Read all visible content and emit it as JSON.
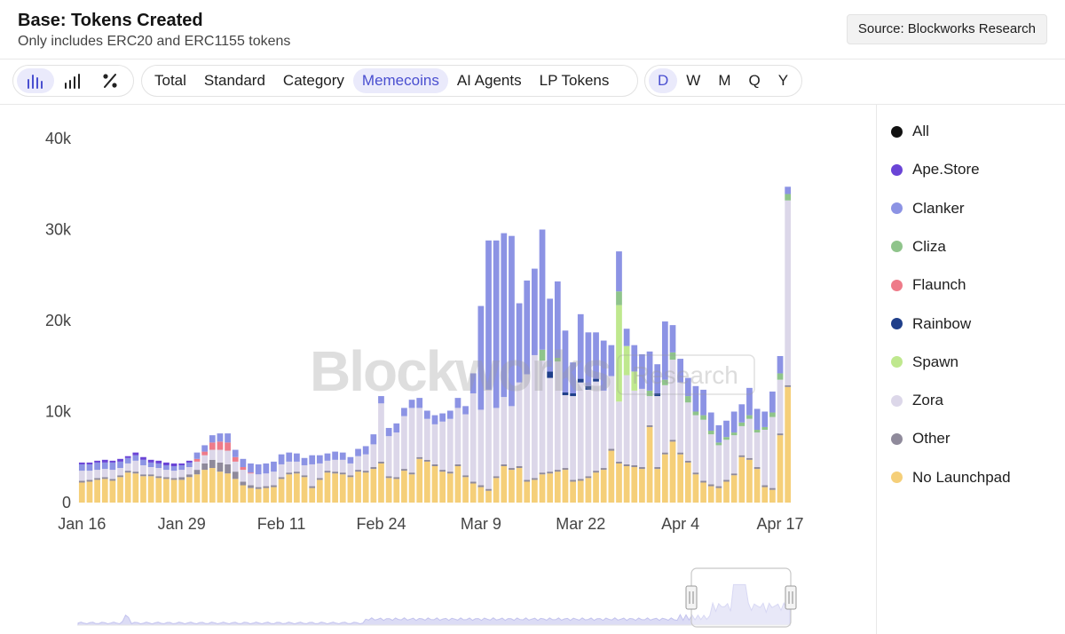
{
  "header": {
    "title": "Base: Tokens Created",
    "subtitle": "Only includes ERC20 and ERC1155 tokens",
    "source": "Source: Blockworks Research"
  },
  "toolbar": {
    "chart_modes": [
      {
        "icon": "bar-chart-icon",
        "active": true
      },
      {
        "icon": "stacked-bar-icon",
        "active": false
      },
      {
        "icon": "percent-icon",
        "active": false
      }
    ],
    "categories": [
      {
        "label": "Total",
        "active": false
      },
      {
        "label": "Standard",
        "active": false
      },
      {
        "label": "Category",
        "active": false
      },
      {
        "label": "Memecoins",
        "active": true
      },
      {
        "label": "AI Agents",
        "active": false
      },
      {
        "label": "LP Tokens",
        "active": false
      }
    ],
    "periods": [
      {
        "label": "D",
        "active": true
      },
      {
        "label": "W",
        "active": false
      },
      {
        "label": "M",
        "active": false
      },
      {
        "label": "Q",
        "active": false
      },
      {
        "label": "Y",
        "active": false
      }
    ]
  },
  "watermark": {
    "brand": "Blockworks",
    "sub": "Research"
  },
  "legend": [
    {
      "label": "All",
      "color": "#111111"
    },
    {
      "label": "Ape.Store",
      "color": "#6a44d6"
    },
    {
      "label": "Clanker",
      "color": "#8c93e4"
    },
    {
      "label": "Cliza",
      "color": "#8fc48b"
    },
    {
      "label": "Flaunch",
      "color": "#ee7b89"
    },
    {
      "label": "Rainbow",
      "color": "#1f3f8a"
    },
    {
      "label": "Spawn",
      "color": "#bfe88e"
    },
    {
      "label": "Zora",
      "color": "#dcd7e9"
    },
    {
      "label": "Other",
      "color": "#8f8a9b"
    },
    {
      "label": "No Launchpad",
      "color": "#f5cf79"
    }
  ],
  "chart_data": {
    "type": "bar",
    "stacked": true,
    "title": "Base: Tokens Created",
    "subtitle": "Only includes ERC20 and ERC1155 tokens",
    "xlabel": "",
    "ylabel": "",
    "ylim": [
      0,
      40000
    ],
    "y_ticks": [
      "0",
      "10k",
      "20k",
      "30k",
      "40k"
    ],
    "x_tick_labels": [
      "Jan 16",
      "Jan 29",
      "Feb 11",
      "Feb 24",
      "Mar 9",
      "Mar 22",
      "Apr 4",
      "Apr 17"
    ],
    "x_tick_index": [
      0,
      13,
      26,
      39,
      52,
      65,
      78,
      91
    ],
    "date_range": [
      "Jan 16",
      "Apr 17"
    ],
    "legend_position": "right",
    "series_order": [
      "No Launchpad",
      "Other",
      "Zora",
      "Spawn",
      "Rainbow",
      "Flaunch",
      "Cliza",
      "Clanker",
      "Ape.Store"
    ],
    "colors": {
      "No Launchpad": "#f5cf79",
      "Other": "#8f8a9b",
      "Zora": "#dcd7e9",
      "Spawn": "#bfe88e",
      "Rainbow": "#1f3f8a",
      "Flaunch": "#ee7b89",
      "Cliza": "#8fc48b",
      "Clanker": "#8c93e4",
      "Ape.Store": "#6a44d6"
    },
    "totals": [
      4400,
      4400,
      4600,
      4700,
      4600,
      4800,
      5100,
      5500,
      5000,
      4700,
      4600,
      4400,
      4300,
      4300,
      4600,
      5500,
      6300,
      7400,
      7600,
      7600,
      5800,
      4800,
      4300,
      4200,
      4300,
      4500,
      5300,
      5500,
      5400,
      4900,
      5200,
      5200,
      5400,
      5600,
      5500,
      5000,
      5900,
      6200,
      7500,
      11700,
      8200,
      8700,
      10400,
      11300,
      11500,
      10100,
      9600,
      9800,
      10100,
      11500,
      10600,
      14200,
      21600,
      28800,
      28800,
      29600,
      29300,
      21900,
      24400,
      25700,
      30000,
      22400,
      24300,
      18900,
      15400,
      20700,
      18700,
      18700,
      17800,
      17300,
      27600,
      19100,
      17300,
      16300,
      16600,
      15200,
      19900,
      19500,
      15800,
      13700,
      12800,
      12400,
      9900,
      8500,
      9000,
      10000,
      10800,
      12600,
      10300,
      10000,
      12200,
      16100,
      34700
    ],
    "segments": [
      {
        "nolaunch": 2200,
        "other": 200,
        "zora": 1100,
        "clanker": 700,
        "ape": 200
      },
      {
        "nolaunch": 2300,
        "other": 200,
        "zora": 1000,
        "clanker": 700,
        "ape": 200
      },
      {
        "nolaunch": 2500,
        "other": 200,
        "zora": 900,
        "clanker": 800,
        "ape": 200
      },
      {
        "nolaunch": 2600,
        "other": 200,
        "zora": 900,
        "clanker": 700,
        "ape": 300
      },
      {
        "nolaunch": 2400,
        "other": 200,
        "zora": 1000,
        "clanker": 800,
        "ape": 200
      },
      {
        "nolaunch": 2800,
        "other": 200,
        "zora": 800,
        "clanker": 700,
        "ape": 300
      },
      {
        "nolaunch": 3300,
        "other": 200,
        "zora": 800,
        "clanker": 600,
        "ape": 200
      },
      {
        "nolaunch": 3200,
        "other": 200,
        "zora": 1200,
        "clanker": 600,
        "ape": 300
      },
      {
        "nolaunch": 2900,
        "other": 200,
        "zora": 1000,
        "clanker": 600,
        "ape": 300
      },
      {
        "nolaunch": 2900,
        "other": 200,
        "zora": 800,
        "clanker": 500,
        "ape": 300
      },
      {
        "nolaunch": 2700,
        "other": 200,
        "zora": 900,
        "clanker": 500,
        "ape": 300
      },
      {
        "nolaunch": 2600,
        "other": 200,
        "zora": 800,
        "clanker": 500,
        "ape": 300
      },
      {
        "nolaunch": 2500,
        "other": 200,
        "zora": 800,
        "clanker": 500,
        "ape": 300
      },
      {
        "nolaunch": 2500,
        "other": 300,
        "zora": 800,
        "clanker": 500,
        "ape": 200
      },
      {
        "nolaunch": 2800,
        "other": 300,
        "zora": 800,
        "clanker": 500,
        "ape": 200
      },
      {
        "nolaunch": 3100,
        "other": 500,
        "zora": 900,
        "clanker": 700,
        "flaunch": 300
      },
      {
        "nolaunch": 3600,
        "other": 700,
        "zora": 900,
        "clanker": 700,
        "flaunch": 400
      },
      {
        "nolaunch": 3800,
        "other": 900,
        "zora": 1100,
        "clanker": 800,
        "flaunch": 800
      },
      {
        "nolaunch": 3400,
        "other": 1000,
        "zora": 1400,
        "clanker": 900,
        "flaunch": 900
      },
      {
        "nolaunch": 3200,
        "other": 1000,
        "zora": 1500,
        "clanker": 1000,
        "flaunch": 900
      },
      {
        "nolaunch": 2600,
        "other": 800,
        "zora": 1100,
        "clanker": 800,
        "flaunch": 500
      },
      {
        "nolaunch": 1900,
        "other": 400,
        "zora": 1300,
        "clanker": 900,
        "flaunch": 300
      },
      {
        "nolaunch": 1600,
        "other": 300,
        "zora": 1300,
        "clanker": 1000,
        "flaunch": 100
      },
      {
        "nolaunch": 1500,
        "other": 200,
        "zora": 1400,
        "clanker": 1100
      },
      {
        "nolaunch": 1600,
        "other": 200,
        "zora": 1400,
        "clanker": 1100
      },
      {
        "nolaunch": 1700,
        "other": 200,
        "zora": 1500,
        "clanker": 1100
      },
      {
        "nolaunch": 2600,
        "other": 200,
        "zora": 1400,
        "clanker": 1100
      },
      {
        "nolaunch": 3100,
        "other": 200,
        "zora": 1200,
        "clanker": 1000
      },
      {
        "nolaunch": 3200,
        "other": 200,
        "zora": 1100,
        "clanker": 900
      },
      {
        "nolaunch": 2800,
        "other": 200,
        "zora": 1100,
        "clanker": 800
      },
      {
        "nolaunch": 1600,
        "other": 200,
        "zora": 2400,
        "clanker": 1000
      },
      {
        "nolaunch": 2500,
        "other": 200,
        "zora": 1600,
        "clanker": 900
      },
      {
        "nolaunch": 3300,
        "other": 200,
        "zora": 1100,
        "clanker": 800
      },
      {
        "nolaunch": 3200,
        "other": 200,
        "zora": 1300,
        "clanker": 900
      },
      {
        "nolaunch": 3100,
        "other": 200,
        "zora": 1400,
        "clanker": 800
      },
      {
        "nolaunch": 2800,
        "other": 200,
        "zora": 1300,
        "clanker": 700
      },
      {
        "nolaunch": 3400,
        "other": 200,
        "zora": 1500,
        "clanker": 800
      },
      {
        "nolaunch": 3300,
        "other": 200,
        "zora": 1800,
        "clanker": 900
      },
      {
        "nolaunch": 3700,
        "other": 200,
        "zora": 2500,
        "clanker": 1100
      },
      {
        "nolaunch": 4300,
        "other": 200,
        "zora": 6400,
        "clanker": 800
      },
      {
        "nolaunch": 2700,
        "other": 200,
        "zora": 4400,
        "clanker": 900
      },
      {
        "nolaunch": 2600,
        "other": 200,
        "zora": 4900,
        "clanker": 1000
      },
      {
        "nolaunch": 3500,
        "other": 200,
        "zora": 5800,
        "clanker": 900
      },
      {
        "nolaunch": 3100,
        "other": 200,
        "zora": 7100,
        "clanker": 900
      },
      {
        "nolaunch": 4800,
        "other": 200,
        "zora": 5400,
        "clanker": 1100
      },
      {
        "nolaunch": 4500,
        "other": 200,
        "zora": 4500,
        "clanker": 900
      },
      {
        "nolaunch": 4000,
        "other": 200,
        "zora": 4400,
        "clanker": 1000
      },
      {
        "nolaunch": 3400,
        "other": 200,
        "zora": 5300,
        "clanker": 900
      },
      {
        "nolaunch": 3200,
        "other": 200,
        "zora": 5800,
        "clanker": 900
      },
      {
        "nolaunch": 4000,
        "other": 200,
        "zora": 6200,
        "clanker": 1100
      },
      {
        "nolaunch": 2800,
        "other": 200,
        "zora": 6700,
        "clanker": 900
      },
      {
        "nolaunch": 2100,
        "other": 200,
        "zora": 9700,
        "clanker": 2200
      },
      {
        "nolaunch": 1700,
        "other": 200,
        "zora": 8300,
        "clanker": 11400
      },
      {
        "nolaunch": 1300,
        "other": 200,
        "zora": 10900,
        "clanker": 16400
      },
      {
        "nolaunch": 2700,
        "other": 200,
        "zora": 7500,
        "clanker": 18400
      },
      {
        "nolaunch": 4000,
        "other": 200,
        "zora": 7400,
        "clanker": 18000
      },
      {
        "nolaunch": 3600,
        "other": 200,
        "zora": 6800,
        "clanker": 18700
      },
      {
        "nolaunch": 3800,
        "other": 200,
        "zora": 9200,
        "clanker": 8700
      },
      {
        "nolaunch": 2300,
        "other": 200,
        "zora": 11600,
        "clanker": 10300
      },
      {
        "nolaunch": 2500,
        "other": 200,
        "zora": 13500,
        "clanker": 9500
      },
      {
        "nolaunch": 3100,
        "other": 200,
        "zora": 12300,
        "clanker": 13200,
        "cliza": 1200
      },
      {
        "nolaunch": 3200,
        "other": 200,
        "zora": 10300,
        "rainbow": 700,
        "clanker": 8000
      },
      {
        "nolaunch": 3400,
        "other": 200,
        "zora": 11900,
        "clanker": 8400,
        "cliza": 400
      },
      {
        "nolaunch": 3600,
        "other": 200,
        "zora": 8000,
        "rainbow": 300,
        "clanker": 6800
      },
      {
        "nolaunch": 2300,
        "other": 200,
        "zora": 9200,
        "rainbow": 300,
        "clanker": 3400
      },
      {
        "nolaunch": 2400,
        "other": 200,
        "zora": 10600,
        "rainbow": 400,
        "clanker": 7100
      },
      {
        "nolaunch": 2700,
        "other": 200,
        "zora": 9500,
        "rainbow": 400,
        "clanker": 5900
      },
      {
        "nolaunch": 3300,
        "other": 200,
        "zora": 9800,
        "rainbow": 300,
        "clanker": 5100
      },
      {
        "nolaunch": 3600,
        "other": 200,
        "zora": 8500,
        "clanker": 5500
      },
      {
        "nolaunch": 5700,
        "other": 200,
        "zora": 8000,
        "clanker": 3400
      },
      {
        "nolaunch": 4300,
        "other": 200,
        "zora": 6600,
        "spawn": 10600,
        "cliza": 1500,
        "clanker": 4400
      },
      {
        "nolaunch": 4000,
        "other": 200,
        "zora": 9800,
        "spawn": 3200,
        "clanker": 1900
      },
      {
        "nolaunch": 3900,
        "other": 200,
        "zora": 8200,
        "spawn": 2100,
        "clanker": 2900
      },
      {
        "nolaunch": 3700,
        "other": 200,
        "zora": 8600,
        "clanker": 3800
      },
      {
        "nolaunch": 8300,
        "other": 200,
        "zora": 3200,
        "cliza": 600,
        "clanker": 4300
      },
      {
        "nolaunch": 3700,
        "other": 200,
        "zora": 7800,
        "rainbow": 300,
        "clanker": 3200
      },
      {
        "nolaunch": 5300,
        "other": 200,
        "zora": 7400,
        "cliza": 600,
        "clanker": 6400
      },
      {
        "nolaunch": 6700,
        "other": 200,
        "zora": 8800,
        "cliza": 800,
        "clanker": 3000
      },
      {
        "nolaunch": 5300,
        "other": 200,
        "zora": 7700,
        "clanker": 2600
      },
      {
        "nolaunch": 4400,
        "other": 200,
        "zora": 6400,
        "cliza": 700,
        "clanker": 2000
      },
      {
        "nolaunch": 3100,
        "other": 200,
        "zora": 6300,
        "cliza": 400,
        "clanker": 2800
      },
      {
        "nolaunch": 2200,
        "other": 200,
        "zora": 6700,
        "cliza": 500,
        "clanker": 2800
      },
      {
        "nolaunch": 1800,
        "other": 200,
        "zora": 5500,
        "cliza": 400,
        "clanker": 2000
      },
      {
        "nolaunch": 1600,
        "other": 200,
        "zora": 4500,
        "cliza": 300,
        "clanker": 1900
      },
      {
        "nolaunch": 2300,
        "other": 200,
        "zora": 4400,
        "cliza": 300,
        "clanker": 1800
      },
      {
        "nolaunch": 3000,
        "other": 200,
        "zora": 4200,
        "cliza": 300,
        "clanker": 2300
      },
      {
        "nolaunch": 5000,
        "other": 200,
        "zora": 3200,
        "cliza": 400,
        "clanker": 2000
      },
      {
        "nolaunch": 4700,
        "other": 200,
        "zora": 4300,
        "cliza": 400,
        "clanker": 3000
      },
      {
        "nolaunch": 3700,
        "other": 200,
        "zora": 3800,
        "cliza": 300,
        "clanker": 2300
      },
      {
        "nolaunch": 1700,
        "other": 200,
        "zora": 6100,
        "cliza": 300,
        "clanker": 1700
      },
      {
        "nolaunch": 1400,
        "other": 200,
        "zora": 7800,
        "cliza": 500,
        "clanker": 2300
      },
      {
        "nolaunch": 7400,
        "other": 200,
        "zora": 5900,
        "cliza": 700,
        "clanker": 1900
      },
      {
        "nolaunch": 12700,
        "other": 200,
        "zora": 20300,
        "cliza": 700,
        "clanker": 800
      }
    ]
  }
}
